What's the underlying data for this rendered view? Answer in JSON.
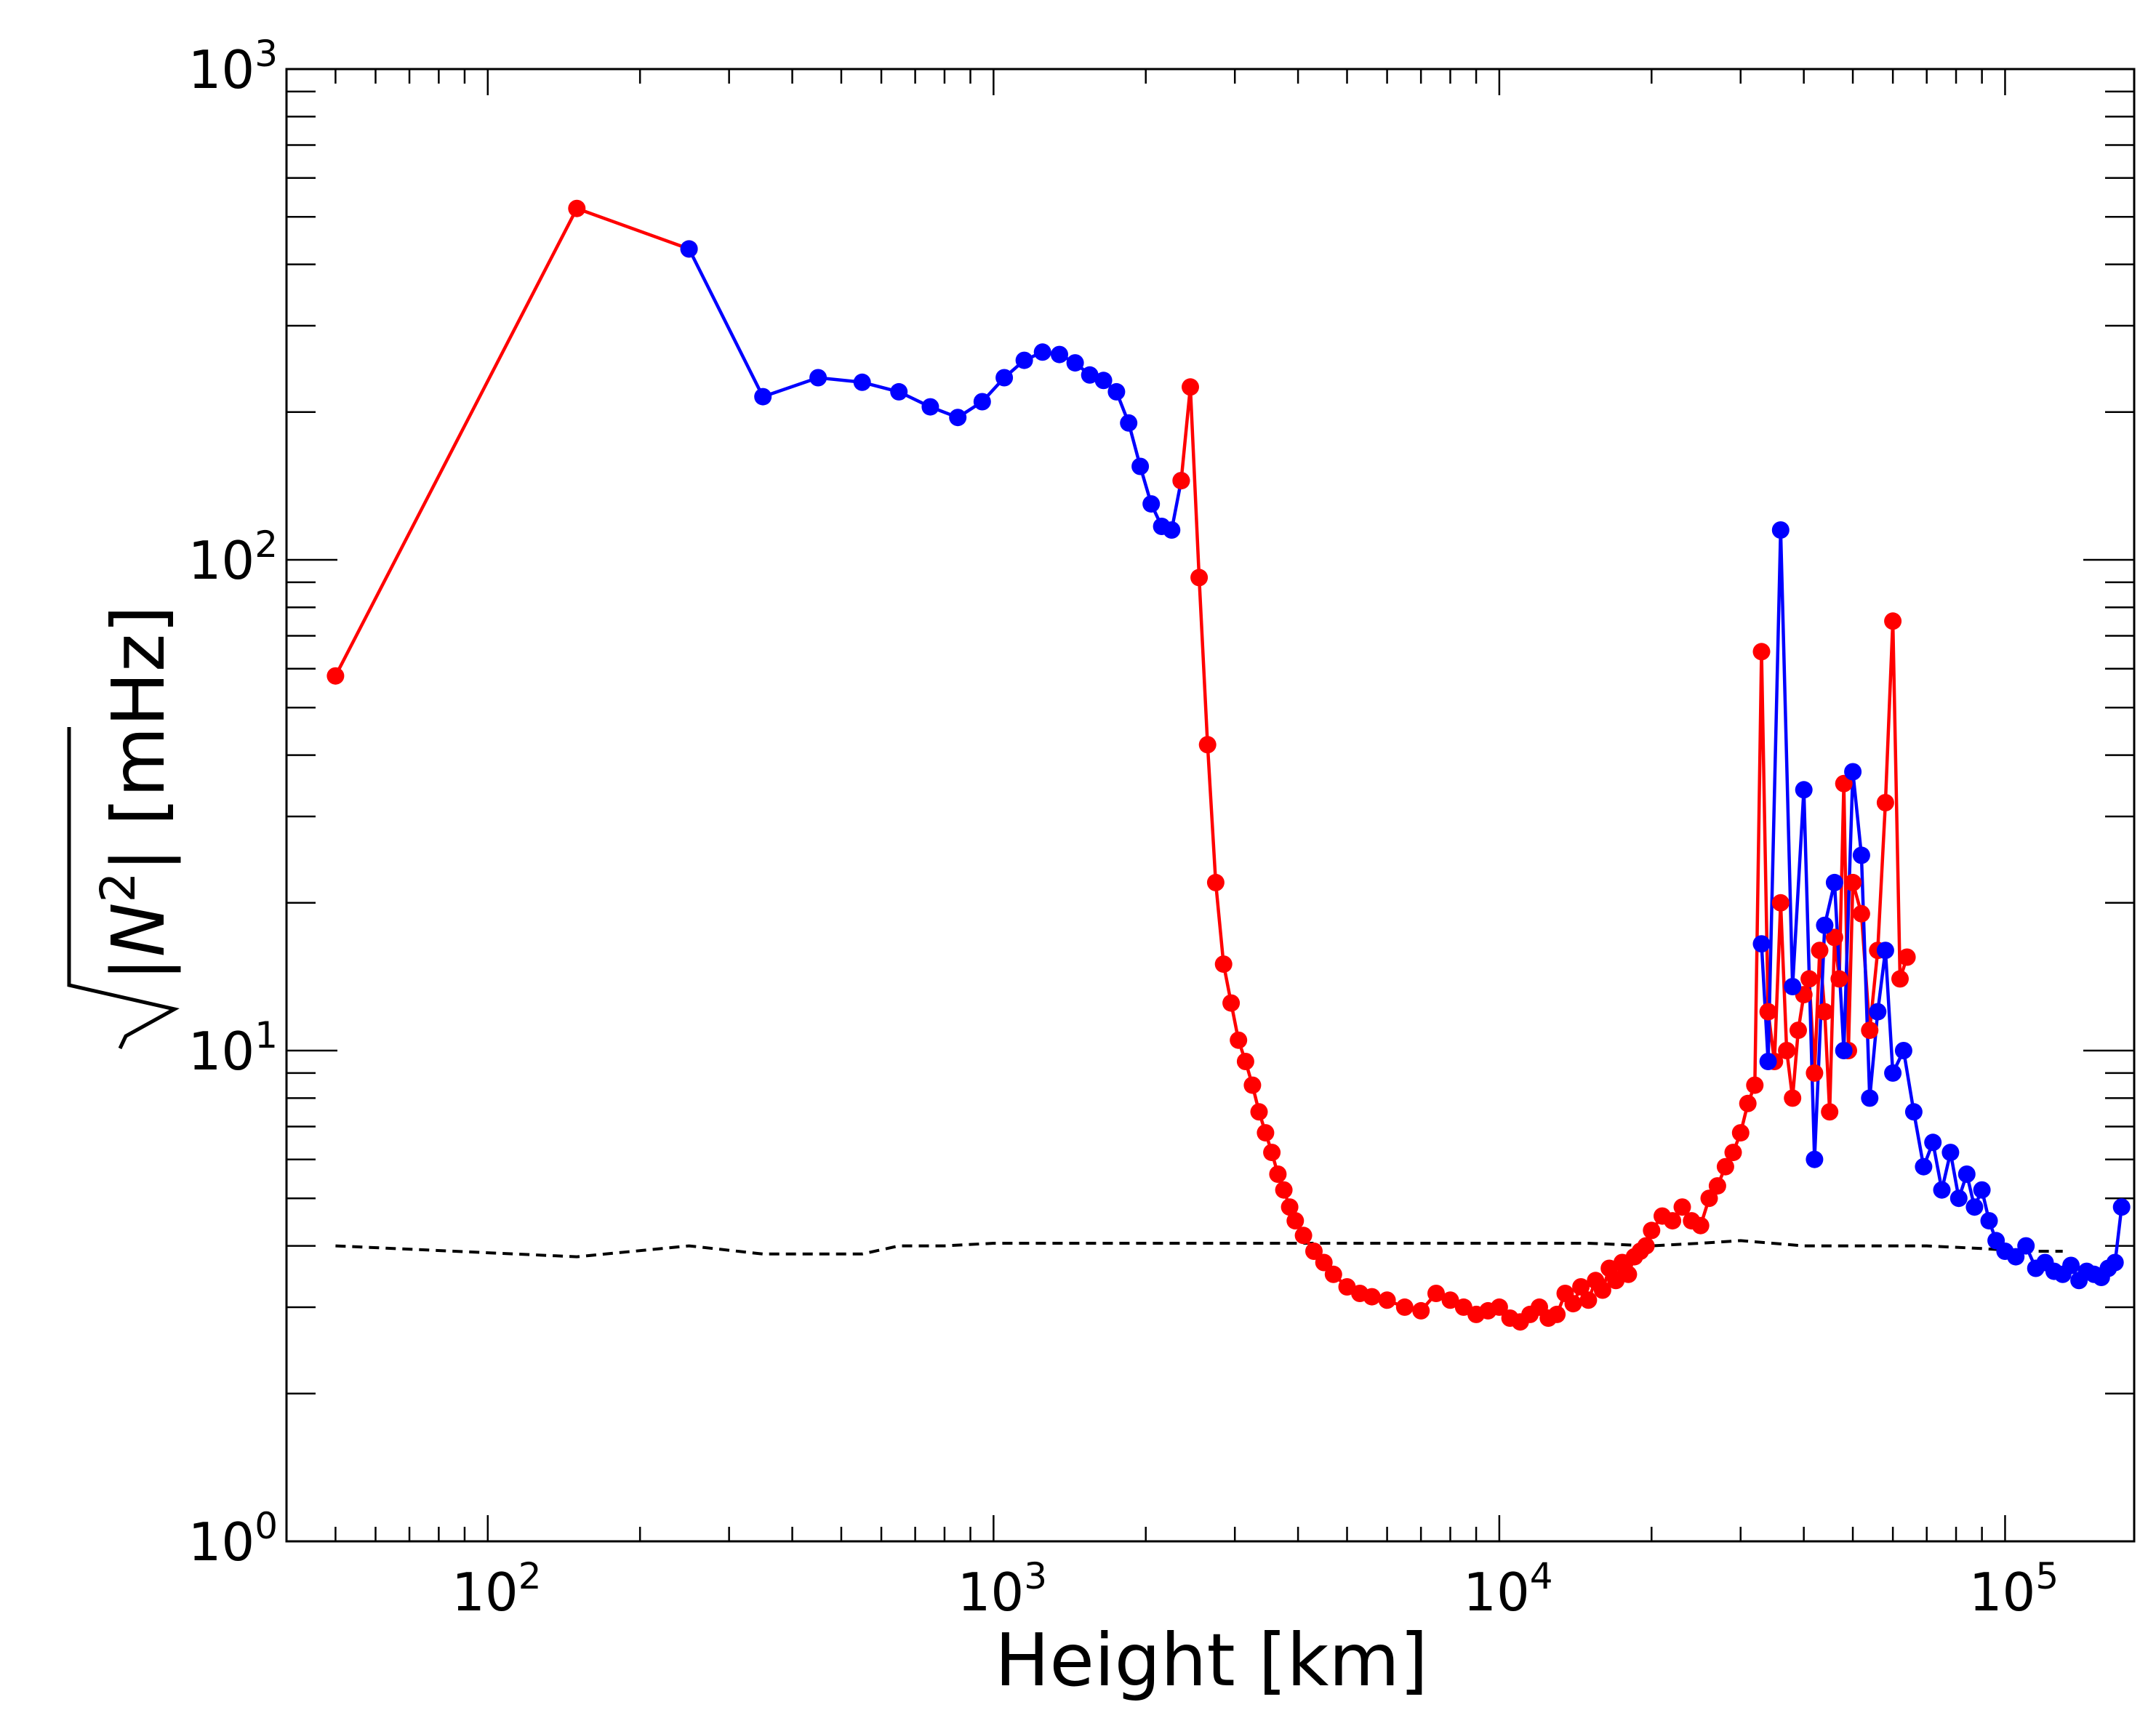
{
  "chart_data": {
    "type": "line",
    "title": "",
    "xlabel": "Height [km]",
    "ylabel": "|N²| [mHz]",
    "ylabel_parts": {
      "radicand": "|N",
      "sup": "2",
      "close": "|",
      "unit": "[mHz]"
    },
    "xscale": "log",
    "yscale": "log",
    "xlim": [
      40,
      180000
    ],
    "ylim": [
      1,
      1000
    ],
    "x_tick_labels": [
      {
        "value": 100,
        "base": "10",
        "exp": "2"
      },
      {
        "value": 1000,
        "base": "10",
        "exp": "3"
      },
      {
        "value": 10000,
        "base": "10",
        "exp": "4"
      },
      {
        "value": 100000,
        "base": "10",
        "exp": "5"
      }
    ],
    "y_tick_labels": [
      {
        "value": 1,
        "base": "10",
        "exp": "0"
      },
      {
        "value": 10,
        "base": "10",
        "exp": "1"
      },
      {
        "value": 100,
        "base": "10",
        "exp": "2"
      },
      {
        "value": 1000,
        "base": "10",
        "exp": "3"
      }
    ],
    "colors": {
      "positive": "#ff0000",
      "negative": "#0000ff",
      "reference": "#000000"
    },
    "series": [
      {
        "name": "sqrt|N^2|",
        "segments": [
          {
            "color": "positive",
            "x": [
              50,
              150,
              250
            ],
            "y": [
              58,
              520,
              430
            ]
          },
          {
            "color": "negative",
            "x": [
              250,
              350,
              450,
              550,
              650,
              750,
              850,
              950,
              1050,
              1150,
              1250,
              1350,
              1450,
              1550,
              1650,
              1750,
              1850,
              1950,
              2050,
              2150,
              2250,
              2350
            ],
            "y": [
              430,
              215,
              235,
              230,
              220,
              205,
              195,
              210,
              235,
              255,
              265,
              262,
              252,
              238,
              232,
              220,
              190,
              155,
              130,
              117,
              115,
              145
            ]
          },
          {
            "color": "positive",
            "x": [
              2350,
              2450,
              2550,
              2650,
              2750,
              2850,
              2950,
              3050,
              3150,
              3250,
              3350,
              3450,
              3550,
              3650,
              3750,
              3850,
              3950,
              4100,
              4300,
              4500,
              4700,
              5000,
              5300,
              5600,
              6000,
              6500,
              7000,
              7500,
              8000,
              8500,
              9000,
              9500,
              10000,
              10500,
              11000,
              11500,
              12000,
              12500,
              13000,
              13500,
              14000,
              14500,
              15000,
              15500,
              16000,
              16500,
              17000,
              17500,
              18000,
              18500,
              19000,
              19500,
              20000,
              21000,
              22000,
              23000,
              24000,
              25000,
              26000,
              27000,
              28000,
              29000,
              30000,
              31000,
              32000,
              33000,
              34000,
              35000,
              36000,
              37000,
              38000,
              39000,
              40000,
              41000,
              42000,
              43000,
              44000,
              45000,
              46000,
              47000,
              48000,
              49000,
              50000,
              52000,
              54000,
              56000,
              58000,
              60000,
              62000,
              64000
            ],
            "y": [
              145,
              225,
              92,
              42,
              22,
              15,
              12.5,
              10.5,
              9.5,
              8.5,
              7.5,
              6.8,
              6.2,
              5.6,
              5.2,
              4.8,
              4.5,
              4.2,
              3.9,
              3.7,
              3.5,
              3.3,
              3.2,
              3.15,
              3.1,
              3.0,
              2.95,
              3.2,
              3.1,
              3.0,
              2.9,
              2.95,
              3.0,
              2.85,
              2.8,
              2.9,
              3.0,
              2.85,
              2.9,
              3.2,
              3.05,
              3.3,
              3.1,
              3.4,
              3.25,
              3.6,
              3.4,
              3.7,
              3.5,
              3.8,
              3.9,
              4.0,
              4.3,
              4.6,
              4.5,
              4.8,
              4.5,
              4.4,
              5.0,
              5.3,
              5.8,
              6.2,
              6.8,
              7.8,
              8.5,
              65,
              12,
              9.5,
              20,
              10,
              8,
              11,
              13,
              14,
              9,
              16,
              12,
              7.5,
              17,
              14,
              35,
              10,
              22,
              19,
              11,
              16,
              32,
              75,
              14,
              15.5
            ]
          },
          {
            "color": "negative",
            "x": [
              33000,
              34000,
              36000,
              38000,
              40000,
              42000,
              44000,
              46000,
              48000,
              50000,
              52000,
              54000,
              56000,
              58000,
              60000,
              63000,
              66000,
              69000,
              72000,
              75000,
              78000,
              81000,
              84000,
              87000,
              90000,
              93000,
              96000,
              100000,
              105000,
              110000,
              115000,
              120000,
              125000,
              130000,
              135000,
              140000,
              145000,
              150000,
              155000,
              160000,
              165000,
              170000
            ],
            "y": [
              16.5,
              9.5,
              115,
              13.5,
              34,
              6,
              18,
              22,
              10,
              37,
              25,
              8,
              12,
              16,
              9,
              10,
              7.5,
              5.8,
              6.5,
              5.2,
              6.2,
              5.0,
              5.6,
              4.8,
              5.2,
              4.5,
              4.1,
              3.9,
              3.8,
              4.0,
              3.6,
              3.7,
              3.55,
              3.5,
              3.65,
              3.4,
              3.55,
              3.5,
              3.45,
              3.6,
              3.7,
              4.8
            ]
          }
        ]
      },
      {
        "name": "reference",
        "style": "dashed",
        "x": [
          50,
          150,
          250,
          350,
          450,
          550,
          650,
          800,
          1000,
          1500,
          2000,
          3000,
          5000,
          7000,
          10000,
          15000,
          20000,
          25000,
          30000,
          40000,
          50000,
          70000,
          90000,
          110000,
          130000
        ],
        "y": [
          4.0,
          3.8,
          4.0,
          3.85,
          3.85,
          3.85,
          4.0,
          4.0,
          4.05,
          4.05,
          4.05,
          4.05,
          4.05,
          4.05,
          4.05,
          4.05,
          4.0,
          4.05,
          4.1,
          4.0,
          4.0,
          4.0,
          3.95,
          3.9,
          3.9
        ]
      }
    ]
  }
}
